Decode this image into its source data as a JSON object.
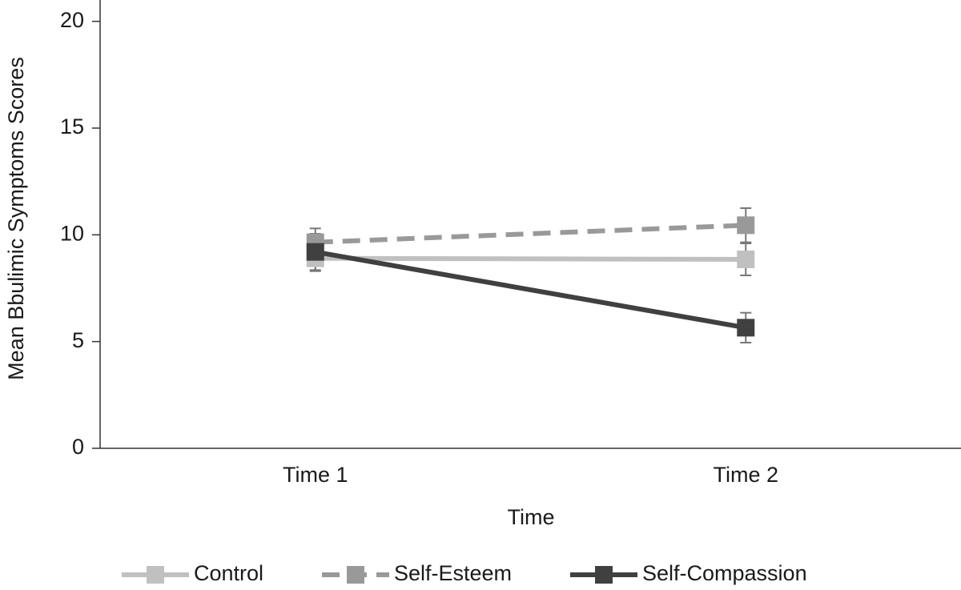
{
  "chart_data": {
    "type": "line",
    "y_label": "Mean Bbulimic Symptoms Scores",
    "x_label": "Time",
    "categories": [
      "Time 1",
      "Time 2"
    ],
    "series": [
      {
        "name": "Control",
        "color": "#c0c0c0",
        "line_style": "solid",
        "values": [
          8.9,
          8.85
        ],
        "errors": [
          0.6,
          0.75
        ]
      },
      {
        "name": "Self-Esteem",
        "color": "#999999",
        "line_style": "dashed",
        "values": [
          9.65,
          10.45
        ],
        "errors": [
          0.65,
          0.8
        ]
      },
      {
        "name": "Self-Compassion",
        "color": "#404040",
        "line_style": "solid",
        "values": [
          9.2,
          5.65
        ],
        "errors": [
          0.85,
          0.7
        ]
      }
    ],
    "ylim": [
      0,
      21
    ],
    "yticks": [
      0,
      5,
      10,
      15,
      20
    ],
    "legend": "bottom"
  }
}
